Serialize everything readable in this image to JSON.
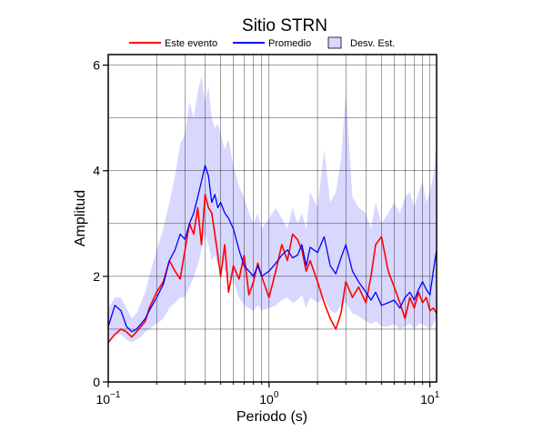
{
  "chart_data": {
    "type": "line",
    "title": "Sitio STRN",
    "xlabel": "Periodo (s)",
    "ylabel": "Amplitud",
    "x_scale": "log",
    "xlim": [
      0.1,
      11
    ],
    "ylim": [
      0,
      6.2
    ],
    "x_ticks": [
      {
        "value": 0.1,
        "base": "10",
        "exp": "−1"
      },
      {
        "value": 1,
        "base": "10",
        "exp": "0"
      },
      {
        "value": 10,
        "base": "10",
        "exp": "1"
      }
    ],
    "y_ticks": [
      {
        "value": 0,
        "label": "0"
      },
      {
        "value": 2,
        "label": "2"
      },
      {
        "value": 4,
        "label": "4"
      },
      {
        "value": 6,
        "label": "6"
      }
    ],
    "grid": true,
    "legend": {
      "position": "top",
      "entries": [
        {
          "label": "Este evento",
          "kind": "line",
          "color": "#ff0000"
        },
        {
          "label": "Promedio",
          "kind": "line",
          "color": "#0000ff"
        },
        {
          "label": "Desv. Est.",
          "kind": "band",
          "color": "#d8d8ff"
        }
      ]
    },
    "x": [
      0.1,
      0.11,
      0.12,
      0.13,
      0.14,
      0.15,
      0.16,
      0.17,
      0.18,
      0.2,
      0.22,
      0.24,
      0.26,
      0.28,
      0.3,
      0.32,
      0.34,
      0.36,
      0.38,
      0.4,
      0.42,
      0.44,
      0.46,
      0.48,
      0.5,
      0.53,
      0.56,
      0.6,
      0.65,
      0.7,
      0.75,
      0.8,
      0.85,
      0.9,
      1.0,
      1.1,
      1.2,
      1.3,
      1.4,
      1.5,
      1.6,
      1.7,
      1.8,
      2.0,
      2.2,
      2.4,
      2.6,
      2.8,
      3.0,
      3.3,
      3.6,
      4.0,
      4.3,
      4.6,
      5.0,
      5.5,
      6.0,
      6.5,
      7.0,
      7.5,
      8.0,
      8.5,
      9.0,
      9.5,
      10.0,
      10.5,
      11.0
    ],
    "series": [
      {
        "name": "Este evento",
        "color": "#ff0000",
        "values": [
          0.75,
          0.9,
          1.0,
          0.95,
          0.85,
          0.95,
          1.05,
          1.15,
          1.4,
          1.7,
          1.9,
          2.3,
          2.1,
          1.95,
          2.5,
          3.0,
          2.8,
          3.3,
          2.6,
          3.55,
          3.3,
          3.2,
          2.8,
          2.4,
          2.0,
          2.6,
          1.7,
          2.2,
          1.95,
          2.4,
          1.65,
          1.9,
          2.25,
          2.0,
          1.6,
          2.1,
          2.6,
          2.3,
          2.8,
          2.7,
          2.5,
          2.1,
          2.3,
          1.9,
          1.5,
          1.2,
          1.0,
          1.3,
          1.9,
          1.6,
          1.8,
          1.5,
          2.0,
          2.6,
          2.75,
          2.1,
          1.8,
          1.5,
          1.2,
          1.6,
          1.4,
          1.7,
          1.5,
          1.6,
          1.35,
          1.4,
          1.3
        ]
      },
      {
        "name": "Promedio",
        "color": "#0000ff",
        "values": [
          1.05,
          1.45,
          1.35,
          1.05,
          0.95,
          1.0,
          1.1,
          1.2,
          1.35,
          1.6,
          1.85,
          2.3,
          2.5,
          2.8,
          2.7,
          3.0,
          3.2,
          3.5,
          3.8,
          4.1,
          3.9,
          3.4,
          3.55,
          3.3,
          3.4,
          3.2,
          3.1,
          2.9,
          2.5,
          2.2,
          2.1,
          2.0,
          2.2,
          2.0,
          2.1,
          2.25,
          2.4,
          2.5,
          2.35,
          2.4,
          2.6,
          2.2,
          2.55,
          2.45,
          2.75,
          2.2,
          2.05,
          2.35,
          2.6,
          2.1,
          1.9,
          1.7,
          1.55,
          1.7,
          1.45,
          1.5,
          1.55,
          1.4,
          1.6,
          1.7,
          1.55,
          1.75,
          1.9,
          1.75,
          1.65,
          2.1,
          2.5
        ]
      }
    ],
    "band": {
      "name": "Desv. Est.",
      "color": "#d8d8ff",
      "upper": [
        1.4,
        1.6,
        1.6,
        1.4,
        1.2,
        1.3,
        1.5,
        1.7,
        2.0,
        2.5,
        2.9,
        3.4,
        3.9,
        4.5,
        4.7,
        5.3,
        5.0,
        5.5,
        5.8,
        5.3,
        5.6,
        5.0,
        4.8,
        4.9,
        4.7,
        4.4,
        4.6,
        4.1,
        3.7,
        3.5,
        3.2,
        3.0,
        3.2,
        2.9,
        3.1,
        3.3,
        3.1,
        2.9,
        3.3,
        3.0,
        3.2,
        2.9,
        3.6,
        3.3,
        4.4,
        3.4,
        3.6,
        4.2,
        5.5,
        3.5,
        3.3,
        3.2,
        2.9,
        3.4,
        3.0,
        3.2,
        3.4,
        3.2,
        3.5,
        3.6,
        3.3,
        3.6,
        3.8,
        3.4,
        3.6,
        3.9,
        4.5
      ],
      "lower": [
        0.7,
        0.9,
        0.9,
        0.8,
        0.75,
        0.8,
        0.85,
        0.95,
        1.0,
        1.1,
        1.2,
        1.4,
        1.5,
        1.6,
        1.6,
        1.8,
        2.0,
        2.2,
        2.5,
        2.8,
        2.6,
        2.3,
        2.4,
        2.2,
        2.3,
        2.1,
        2.0,
        1.9,
        1.6,
        1.45,
        1.4,
        1.35,
        1.45,
        1.35,
        1.4,
        1.45,
        1.55,
        1.6,
        1.5,
        1.55,
        1.65,
        1.4,
        1.6,
        1.5,
        1.6,
        1.35,
        1.3,
        1.45,
        1.5,
        1.3,
        1.25,
        1.15,
        1.1,
        1.15,
        1.05,
        1.05,
        1.1,
        1.0,
        1.05,
        1.1,
        1.0,
        1.1,
        1.1,
        1.05,
        1.0,
        1.1,
        1.2
      ]
    }
  }
}
